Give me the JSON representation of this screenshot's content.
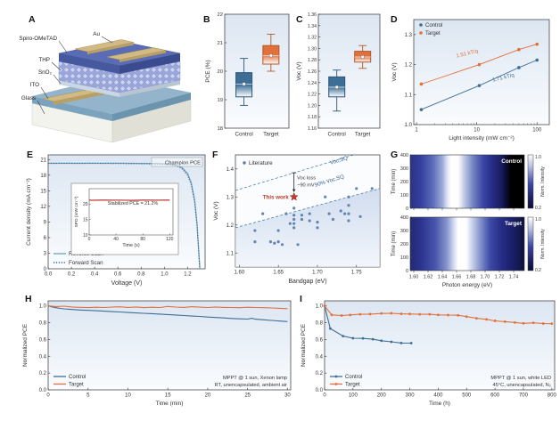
{
  "figure": {
    "background": "#ffffff"
  },
  "panels": {
    "A": {
      "label": "A",
      "top_contact": "Au",
      "layers": [
        "Spiro-OMeTAD",
        "THP",
        "SnO₂",
        "ITO",
        "Glass"
      ]
    }
  },
  "chart_data": [
    {
      "panel": "B",
      "type": "box",
      "ylabel": "PCE (%)",
      "ylim": [
        18,
        22
      ],
      "yticks": [
        "18",
        "19",
        "20",
        "21",
        "22"
      ],
      "categories": [
        "Control",
        "Target"
      ],
      "boxes": [
        {
          "name": "Control",
          "color": "#3c6e96",
          "stroke": "#2c567a",
          "whisker_low": 18.8,
          "q1": 19.1,
          "mean": 19.55,
          "q3": 19.95,
          "whisker_high": 20.45
        },
        {
          "name": "Target",
          "color": "#e2703a",
          "stroke": "#b4582b",
          "whisker_low": 20.0,
          "q1": 20.25,
          "mean": 20.55,
          "q3": 20.9,
          "whisker_high": 21.3
        }
      ]
    },
    {
      "panel": "C",
      "type": "box",
      "ylabel": "Voc (V)",
      "ylim": [
        1.16,
        1.36
      ],
      "yticks": [
        "1.16",
        "1.18",
        "1.20",
        "1.22",
        "1.24",
        "1.26",
        "1.28",
        "1.30",
        "1.32",
        "1.34",
        "1.36"
      ],
      "categories": [
        "Control",
        "Target"
      ],
      "boxes": [
        {
          "name": "Control",
          "color": "#3c6e96",
          "stroke": "#2c567a",
          "whisker_low": 1.19,
          "q1": 1.215,
          "mean": 1.232,
          "q3": 1.25,
          "whisker_high": 1.262
        },
        {
          "name": "Target",
          "color": "#e2703a",
          "stroke": "#b4582b",
          "whisker_low": 1.265,
          "q1": 1.276,
          "mean": 1.285,
          "q3": 1.295,
          "whisker_high": 1.305
        }
      ]
    },
    {
      "panel": "D",
      "type": "line-log",
      "xlabel": "Light intensity (mW cm⁻²)",
      "ylabel": "Voc (V)",
      "xlim": [
        0.9,
        160
      ],
      "ylim": [
        1.0,
        1.35
      ],
      "xticks": [
        1,
        10,
        100
      ],
      "yticks": [
        "1.0",
        "1.1",
        "1.2",
        "1.3"
      ],
      "series": [
        {
          "name": "Control",
          "color": "#3c6e96",
          "x": [
            1.2,
            11,
            50,
            100
          ],
          "y": [
            1.05,
            1.13,
            1.19,
            1.215
          ],
          "slope_label": "1.71 kT/q",
          "label_pos": [
            28,
            1.152
          ]
        },
        {
          "name": "Target",
          "color": "#e2703a",
          "x": [
            1.2,
            11,
            50,
            100
          ],
          "y": [
            1.135,
            1.2,
            1.25,
            1.268
          ],
          "slope_label": "1.51 kT/q",
          "label_pos": [
            7,
            1.232
          ]
        }
      ]
    },
    {
      "panel": "E",
      "type": "jv",
      "xlabel": "Voltage (V)",
      "ylabel": "Current density (mA cm⁻²)",
      "xlim": [
        0,
        1.35
      ],
      "ylim": [
        0,
        21.9
      ],
      "xticks": [
        "0.0",
        "0.2",
        "0.4",
        "0.6",
        "0.8",
        "1.0",
        "1.2"
      ],
      "yticks": [
        "0",
        "3",
        "6",
        "9",
        "12",
        "15",
        "18",
        "21"
      ],
      "corner_label": "Champion PCE",
      "series": [
        {
          "name": "Reverse Scan",
          "style": "solid",
          "color": "#79a8c4",
          "x": [
            0,
            0.1,
            0.2,
            0.3,
            0.4,
            0.5,
            0.6,
            0.7,
            0.8,
            0.9,
            1.0,
            1.05,
            1.1,
            1.15,
            1.2,
            1.23,
            1.26,
            1.28,
            1.295,
            1.305
          ],
          "y": [
            20.3,
            20.3,
            20.3,
            20.3,
            20.3,
            20.3,
            20.29,
            20.28,
            20.26,
            20.24,
            20.2,
            20.12,
            19.95,
            19.5,
            18.3,
            16.6,
            13.2,
            8.8,
            3.6,
            0
          ]
        },
        {
          "name": "Forward Scan",
          "style": "dotted",
          "color": "#2f6590",
          "x": [
            0,
            0.1,
            0.2,
            0.3,
            0.4,
            0.5,
            0.6,
            0.7,
            0.8,
            0.9,
            1.0,
            1.05,
            1.1,
            1.15,
            1.2,
            1.23,
            1.26,
            1.28,
            1.295,
            1.305
          ],
          "y": [
            20.25,
            20.25,
            20.25,
            20.25,
            20.25,
            20.25,
            20.24,
            20.22,
            20.2,
            20.17,
            20.1,
            20.0,
            19.8,
            19.3,
            18.0,
            16.2,
            12.8,
            8.4,
            3.3,
            0
          ]
        }
      ],
      "inset": {
        "xlabel": "Time (s)",
        "ylabel": "SPO (mW cm⁻²)",
        "xlim": [
          0,
          125
        ],
        "ylim": [
          10,
          25
        ],
        "xticks": [
          0,
          40,
          80,
          120
        ],
        "yticks": [
          10,
          15,
          20
        ],
        "label": "Stabilized PCE = 21.2%",
        "line_color": "#c2403a",
        "x": [
          0,
          5,
          20,
          40,
          60,
          62,
          80,
          100,
          120
        ],
        "y": [
          21.3,
          21.25,
          21.3,
          21.28,
          21.25,
          21.2,
          21.3,
          21.28,
          21.3
        ]
      }
    },
    {
      "panel": "F",
      "type": "scatter",
      "xlabel": "Bandgap (eV)",
      "ylabel": "Voc (V)",
      "xlim": [
        1.595,
        1.78
      ],
      "ylim": [
        1.05,
        1.45
      ],
      "xticks": [
        "1.60",
        "1.65",
        "1.70",
        "1.75"
      ],
      "yticks": [
        "1.1",
        "1.2",
        "1.3",
        "1.4"
      ],
      "legend_label": "Literature",
      "point_color": "#5579a8",
      "points": [
        [
          1.62,
          1.18
        ],
        [
          1.62,
          1.14
        ],
        [
          1.63,
          1.24
        ],
        [
          1.64,
          1.14
        ],
        [
          1.645,
          1.135
        ],
        [
          1.65,
          1.18
        ],
        [
          1.65,
          1.14
        ],
        [
          1.655,
          1.13
        ],
        [
          1.66,
          1.24
        ],
        [
          1.665,
          1.205
        ],
        [
          1.67,
          1.26
        ],
        [
          1.67,
          1.235
        ],
        [
          1.67,
          1.22
        ],
        [
          1.67,
          1.205
        ],
        [
          1.67,
          1.19
        ],
        [
          1.675,
          1.13
        ],
        [
          1.68,
          1.235
        ],
        [
          1.68,
          1.22
        ],
        [
          1.69,
          1.24
        ],
        [
          1.69,
          1.215
        ],
        [
          1.7,
          1.21
        ],
        [
          1.7,
          1.19
        ],
        [
          1.71,
          1.3
        ],
        [
          1.715,
          1.24
        ],
        [
          1.72,
          1.22
        ],
        [
          1.73,
          1.25
        ],
        [
          1.735,
          1.24
        ],
        [
          1.74,
          1.3
        ],
        [
          1.74,
          1.27
        ],
        [
          1.74,
          1.24
        ],
        [
          1.74,
          1.215
        ],
        [
          1.75,
          1.33
        ],
        [
          1.755,
          1.23
        ],
        [
          1.77,
          1.33
        ]
      ],
      "this_work": {
        "label": "This work",
        "x": 1.67,
        "y": 1.3,
        "color": "#c0392b"
      },
      "line_sq": {
        "label": "Voc,SQ",
        "x": [
          1.595,
          1.78
        ],
        "y": [
          1.323,
          1.478
        ]
      },
      "line_90": {
        "label": "90% Voc,SQ",
        "x": [
          1.595,
          1.78
        ],
        "y": [
          1.19,
          1.33
        ]
      },
      "loss_label_1": "Voc loss",
      "loss_label_2": "~90 mV",
      "arrow": {
        "x": 1.67,
        "y_top": 1.386,
        "y_bot": 1.318
      }
    },
    {
      "panel": "G",
      "type": "heatmap",
      "xlabel": "Photon energy (eV)",
      "ylabel": "Time (min)",
      "xlim": [
        1.595,
        1.755
      ],
      "xticks": [
        "1.60",
        "1.62",
        "1.64",
        "1.66",
        "1.68",
        "1.70",
        "1.72",
        "1.74"
      ],
      "yticks": [
        0,
        100,
        200,
        300,
        400
      ],
      "colorbar": {
        "label": "Norm. Intensity",
        "top": "1.0",
        "bottom": "0.2"
      },
      "maps": [
        {
          "name": "Control",
          "stops": [
            [
              0,
              "#2b3187"
            ],
            [
              0.1,
              "#3642a0"
            ],
            [
              0.2,
              "#5e6cba"
            ],
            [
              0.28,
              "#9aa8d8"
            ],
            [
              0.33,
              "#e6eaf7"
            ],
            [
              0.36,
              "#ffffff"
            ],
            [
              0.42,
              "#ffffff"
            ],
            [
              0.47,
              "#c3cde8"
            ],
            [
              0.55,
              "#7484c4"
            ],
            [
              0.64,
              "#3a46a4"
            ],
            [
              0.72,
              "#262c84"
            ],
            [
              0.8,
              "#181c5e"
            ],
            [
              0.85,
              "#090a28"
            ],
            [
              0.88,
              "#000000"
            ],
            [
              1,
              "#000000"
            ]
          ]
        },
        {
          "name": "Target",
          "stops": [
            [
              0,
              "#232970"
            ],
            [
              0.1,
              "#2c3590"
            ],
            [
              0.22,
              "#4956ac"
            ],
            [
              0.32,
              "#8694cd"
            ],
            [
              0.39,
              "#dde3f4"
            ],
            [
              0.42,
              "#ffffff"
            ],
            [
              0.49,
              "#ffffff"
            ],
            [
              0.54,
              "#ccd4ec"
            ],
            [
              0.62,
              "#7f8ec9"
            ],
            [
              0.7,
              "#3e4aa6"
            ],
            [
              0.8,
              "#262d86"
            ],
            [
              0.9,
              "#1a1f66"
            ],
            [
              0.97,
              "#131748"
            ],
            [
              1,
              "#0c0e33"
            ]
          ]
        }
      ]
    },
    {
      "panel": "H",
      "type": "stability",
      "markers": false,
      "xlabel": "Time (min)",
      "ylabel": "Normalized PCE",
      "xlim": [
        0,
        30.4
      ],
      "ylim": [
        0,
        1.06
      ],
      "xticks": [
        0,
        5,
        10,
        15,
        20,
        25,
        30
      ],
      "yticks": [
        "0.0",
        "0.2",
        "0.4",
        "0.6",
        "0.8",
        "1.0"
      ],
      "annotation": [
        "MPPT @ 1 sun, Xenon lamp",
        "RT, unencapsulated, ambient air"
      ],
      "series": [
        {
          "name": "Control",
          "color": "#3c6e96",
          "x": [
            0,
            0.5,
            1,
            1.5,
            2,
            3,
            4,
            5,
            6,
            7,
            8,
            9,
            10,
            11,
            12,
            13,
            14,
            15,
            16,
            17,
            18,
            19,
            20,
            21,
            22,
            23,
            24,
            25,
            25.5,
            26,
            27,
            28,
            29,
            30
          ],
          "y": [
            1.0,
            0.988,
            0.978,
            0.97,
            0.965,
            0.957,
            0.951,
            0.947,
            0.942,
            0.937,
            0.932,
            0.927,
            0.921,
            0.916,
            0.912,
            0.907,
            0.902,
            0.897,
            0.891,
            0.885,
            0.879,
            0.874,
            0.867,
            0.862,
            0.856,
            0.85,
            0.846,
            0.843,
            0.852,
            0.842,
            0.834,
            0.827,
            0.819,
            0.813
          ]
        },
        {
          "name": "Target",
          "color": "#e2703a",
          "x": [
            0,
            1,
            2,
            3,
            4,
            5,
            6,
            7,
            8,
            9,
            10,
            11,
            12,
            13,
            14,
            15,
            16,
            17,
            18,
            19,
            20,
            21,
            22,
            23,
            24,
            25,
            26,
            27,
            28,
            29,
            30
          ],
          "y": [
            1.0,
            0.992,
            0.996,
            0.987,
            0.983,
            0.979,
            0.984,
            0.98,
            0.986,
            0.989,
            0.982,
            0.987,
            0.979,
            0.984,
            0.981,
            0.993,
            0.986,
            0.982,
            0.99,
            0.985,
            0.98,
            0.987,
            0.982,
            0.98,
            0.978,
            0.984,
            0.98,
            0.978,
            0.975,
            0.971,
            0.967
          ]
        }
      ]
    },
    {
      "panel": "I",
      "type": "stability",
      "markers": true,
      "xlabel": "Time (h)",
      "ylabel": "Normalized PCE",
      "xlim": [
        0,
        810
      ],
      "ylim": [
        0,
        1.06
      ],
      "xticks": [
        0,
        100,
        200,
        300,
        400,
        500,
        600,
        700,
        800
      ],
      "yticks": [
        "0.0",
        "0.2",
        "0.4",
        "0.6",
        "0.8",
        "1.0"
      ],
      "annotation": [
        "MPPT @ 1 sun, white LED",
        "45°C, unencapsulated, N₂"
      ],
      "series": [
        {
          "name": "Control",
          "color": "#3c6e96",
          "x": [
            0,
            20,
            65,
            100,
            135,
            170,
            200,
            235,
            270,
            305
          ],
          "y": [
            1.0,
            0.73,
            0.64,
            0.615,
            0.613,
            0.603,
            0.585,
            0.572,
            0.558,
            0.556
          ]
        },
        {
          "name": "Target",
          "color": "#e2703a",
          "x": [
            0,
            25,
            60,
            90,
            125,
            160,
            200,
            235,
            270,
            300,
            335,
            370,
            400,
            435,
            470,
            500,
            535,
            570,
            600,
            635,
            670,
            700,
            735,
            770,
            800
          ],
          "y": [
            1.0,
            0.893,
            0.885,
            0.892,
            0.9,
            0.902,
            0.91,
            0.912,
            0.905,
            0.903,
            0.9,
            0.9,
            0.893,
            0.89,
            0.888,
            0.872,
            0.852,
            0.84,
            0.822,
            0.812,
            0.802,
            0.792,
            0.798,
            0.79,
            0.788
          ]
        }
      ]
    }
  ]
}
